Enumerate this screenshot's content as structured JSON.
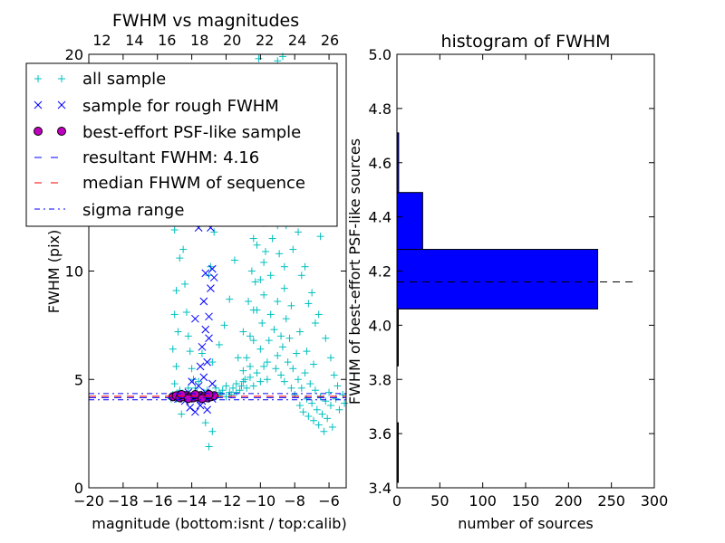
{
  "chart_data": [
    {
      "type": "scatter",
      "title": "FWHM vs magnitudes",
      "xlabel": "magnitude (bottom:isnt / top:calib)",
      "ylabel": "FWHM (pix)",
      "xlim": [
        -20,
        -5
      ],
      "ylim": [
        0,
        20
      ],
      "top_xlim": [
        11.2,
        27.0
      ],
      "x_ticks": [
        -20,
        -18,
        -16,
        -14,
        -12,
        -10,
        -8,
        -6
      ],
      "x_tick_labels": [
        "−20",
        "−18",
        "−16",
        "−14",
        "−12",
        "−10",
        "−8",
        "−6"
      ],
      "top_ticks": [
        12,
        14,
        16,
        18,
        20,
        22,
        24,
        26
      ],
      "top_tick_labels": [
        "12",
        "14",
        "16",
        "18",
        "20",
        "22",
        "24",
        "26"
      ],
      "y_ticks": [
        0,
        5,
        10,
        20
      ],
      "y_tick_labels": [
        "0",
        "5",
        "10",
        "20"
      ],
      "grid": false,
      "legend_position": "top-left",
      "legend": [
        {
          "label": "all sample",
          "marker": "+",
          "color": "#00bfbf"
        },
        {
          "label": "sample for rough FWHM",
          "marker": "x",
          "color": "#0000ff"
        },
        {
          "label": "best-effort PSF-like sample",
          "marker": "o",
          "color": "#bf00bf"
        },
        {
          "label": "resultant FWHM: 4.16",
          "line": "dashed",
          "color": "#0000ff"
        },
        {
          "label": "median FHWM of sequence",
          "line": "dashed",
          "color": "#ff0000"
        },
        {
          "label": "sigma range",
          "line": "dashdot",
          "color": "#0000ff"
        }
      ],
      "resultant_fwhm": 4.16,
      "median_fwhm": 4.22,
      "sigma_range": [
        4.06,
        4.35
      ],
      "series": [
        {
          "name": "all sample",
          "color": "#00bfbf",
          "marker": "+",
          "points": [
            [
              -15.1,
              4.3
            ],
            [
              -15.0,
              4.8
            ],
            [
              -14.9,
              5.6
            ],
            [
              -15.1,
              6.4
            ],
            [
              -14.8,
              7.2
            ],
            [
              -15.0,
              8.0
            ],
            [
              -14.9,
              9.1
            ],
            [
              -14.7,
              10.6
            ],
            [
              -15.0,
              11.9
            ],
            [
              -14.8,
              13.2
            ],
            [
              -14.6,
              12.5
            ],
            [
              -14.5,
              11.0
            ],
            [
              -14.4,
              9.4
            ],
            [
              -14.3,
              8.1
            ],
            [
              -14.2,
              7.0
            ],
            [
              -14.1,
              6.3
            ],
            [
              -14.0,
              5.5
            ],
            [
              -13.9,
              5.0
            ],
            [
              -13.8,
              4.6
            ],
            [
              -13.7,
              4.4
            ],
            [
              -13.5,
              4.3
            ],
            [
              -13.3,
              4.4
            ],
            [
              -13.1,
              4.5
            ],
            [
              -12.9,
              4.3
            ],
            [
              -12.6,
              4.6
            ],
            [
              -12.4,
              4.4
            ],
            [
              -12.2,
              4.5
            ],
            [
              -12.0,
              4.7
            ],
            [
              -11.8,
              4.4
            ],
            [
              -11.6,
              4.6
            ],
            [
              -11.4,
              4.8
            ],
            [
              -11.2,
              4.5
            ],
            [
              -11.0,
              4.9
            ],
            [
              -10.8,
              4.6
            ],
            [
              -10.6,
              5.1
            ],
            [
              -10.4,
              4.7
            ],
            [
              -10.2,
              5.3
            ],
            [
              -10.0,
              4.9
            ],
            [
              -9.8,
              5.6
            ],
            [
              -9.6,
              5.0
            ],
            [
              -13.2,
              3.0
            ],
            [
              -13.0,
              1.9
            ],
            [
              -12.8,
              2.6
            ],
            [
              -14.6,
              3.4
            ],
            [
              -11.0,
              5.4
            ],
            [
              -10.8,
              6.0
            ],
            [
              -10.6,
              7.0
            ],
            [
              -10.4,
              8.2
            ],
            [
              -10.3,
              9.5
            ],
            [
              -10.2,
              11.2
            ],
            [
              -10.1,
              12.8
            ],
            [
              -10.0,
              14.0
            ],
            [
              -10.0,
              6.4
            ],
            [
              -9.9,
              7.6
            ],
            [
              -9.8,
              8.9
            ],
            [
              -9.8,
              10.4
            ],
            [
              -9.7,
              13.2
            ],
            [
              -9.6,
              5.8
            ],
            [
              -9.5,
              6.8
            ],
            [
              -9.4,
              8.0
            ],
            [
              -9.4,
              9.8
            ],
            [
              -9.3,
              11.5
            ],
            [
              -9.2,
              7.3
            ],
            [
              -9.1,
              5.5
            ],
            [
              -9.0,
              6.1
            ],
            [
              -9.0,
              8.6
            ],
            [
              -8.9,
              10.8
            ],
            [
              -8.8,
              7.0
            ],
            [
              -8.8,
              5.2
            ],
            [
              -8.7,
              6.5
            ],
            [
              -8.6,
              9.2
            ],
            [
              -8.6,
              4.9
            ],
            [
              -8.5,
              7.8
            ],
            [
              -8.4,
              5.8
            ],
            [
              -8.3,
              6.9
            ],
            [
              -8.2,
              4.6
            ],
            [
              -8.1,
              5.5
            ],
            [
              -8.0,
              4.3
            ],
            [
              -7.9,
              6.2
            ],
            [
              -7.8,
              5.0
            ],
            [
              -7.7,
              3.8
            ],
            [
              -7.6,
              4.6
            ],
            [
              -7.5,
              3.5
            ],
            [
              -7.4,
              5.3
            ],
            [
              -7.3,
              4.1
            ],
            [
              -7.2,
              3.3
            ],
            [
              -7.1,
              4.8
            ],
            [
              -7.0,
              3.9
            ],
            [
              -6.9,
              3.1
            ],
            [
              -6.8,
              4.5
            ],
            [
              -6.7,
              3.6
            ],
            [
              -6.6,
              2.9
            ],
            [
              -6.5,
              4.2
            ],
            [
              -6.4,
              3.4
            ],
            [
              -6.3,
              2.6
            ],
            [
              -6.2,
              4.0
            ],
            [
              -6.1,
              3.2
            ],
            [
              -6.0,
              4.4
            ],
            [
              -5.9,
              3.8
            ],
            [
              -5.8,
              2.8
            ],
            [
              -5.6,
              4.1
            ],
            [
              -5.4,
              3.6
            ],
            [
              -5.2,
              4.3
            ],
            [
              -5.1,
              3.9
            ],
            [
              -11.2,
              12.4
            ],
            [
              -10.9,
              14.6
            ],
            [
              -10.5,
              16.8
            ],
            [
              -10.3,
              18.2
            ],
            [
              -10.1,
              19.8
            ],
            [
              -9.9,
              18.6
            ],
            [
              -9.6,
              17.2
            ],
            [
              -9.3,
              15.5
            ],
            [
              -8.9,
              13.6
            ],
            [
              -8.5,
              12.1
            ],
            [
              -8.1,
              11.0
            ],
            [
              -7.6,
              9.8
            ],
            [
              -7.2,
              8.5
            ],
            [
              -6.8,
              7.6
            ],
            [
              -6.5,
              11.6
            ],
            [
              -9.0,
              19.7
            ],
            [
              -8.7,
              19.9
            ],
            [
              -10.7,
              13.3
            ],
            [
              -11.5,
              10.5
            ],
            [
              -11.8,
              8.7
            ],
            [
              -12.1,
              7.5
            ],
            [
              -12.4,
              6.6
            ],
            [
              -12.8,
              5.8
            ],
            [
              -13.6,
              4.9
            ],
            [
              -14.2,
              4.6
            ],
            [
              -14.7,
              4.5
            ],
            [
              -13.0,
              9.8
            ],
            [
              -12.7,
              11.8
            ],
            [
              -12.9,
              10.2
            ],
            [
              -13.4,
              6.2
            ],
            [
              -12.3,
              12.6
            ],
            [
              -11.3,
              6.0
            ],
            [
              -11.0,
              7.2
            ],
            [
              -10.7,
              8.6
            ],
            [
              -10.5,
              10.0
            ],
            [
              -10.4,
              11.5
            ],
            [
              -9.8,
              12.2
            ],
            [
              -9.5,
              14.2
            ],
            [
              -9.2,
              16.0
            ],
            [
              -8.8,
              17.5
            ],
            [
              -8.4,
              15.2
            ],
            [
              -8.0,
              13.4
            ],
            [
              -7.8,
              11.8
            ],
            [
              -7.4,
              10.2
            ],
            [
              -7.0,
              9.0
            ],
            [
              -6.6,
              8.0
            ],
            [
              -6.2,
              6.9
            ],
            [
              -5.9,
              6.0
            ],
            [
              -5.7,
              5.2
            ],
            [
              -5.5,
              4.7
            ],
            [
              -6.9,
              5.7
            ],
            [
              -7.3,
              6.3
            ],
            [
              -7.7,
              7.2
            ],
            [
              -8.2,
              8.4
            ],
            [
              -8.6,
              10.2
            ],
            [
              -9.0,
              12.1
            ],
            [
              -9.4,
              13.0
            ],
            [
              -9.7,
              10.9
            ],
            [
              -10.0,
              9.6
            ],
            [
              -10.2,
              8.2
            ],
            [
              -10.4,
              6.8
            ],
            [
              -10.6,
              5.6
            ],
            [
              -10.9,
              5.0
            ],
            [
              -11.1,
              4.7
            ],
            [
              -11.4,
              4.4
            ],
            [
              -11.7,
              4.3
            ],
            [
              -12.0,
              4.2
            ],
            [
              -12.3,
              4.3
            ],
            [
              -12.6,
              4.2
            ],
            [
              -12.9,
              4.3
            ],
            [
              -13.2,
              4.2
            ],
            [
              -13.5,
              4.2
            ],
            [
              -13.8,
              4.3
            ],
            [
              -14.1,
              4.2
            ],
            [
              -14.4,
              4.2
            ],
            [
              -14.7,
              4.3
            ],
            [
              -15.0,
              4.2
            ],
            [
              -15.2,
              4.1
            ],
            [
              -14.9,
              4.1
            ],
            [
              -14.3,
              4.1
            ]
          ]
        },
        {
          "name": "sample for rough FWHM",
          "color": "#0000ff",
          "marker": "x",
          "points": [
            [
              -14.8,
              4.1
            ],
            [
              -14.6,
              4.3
            ],
            [
              -14.4,
              4.0
            ],
            [
              -14.2,
              4.4
            ],
            [
              -14.0,
              4.2
            ],
            [
              -13.8,
              4.1
            ],
            [
              -13.6,
              4.3
            ],
            [
              -13.4,
              4.0
            ],
            [
              -13.2,
              4.4
            ],
            [
              -13.0,
              4.2
            ],
            [
              -12.8,
              4.1
            ],
            [
              -14.1,
              3.7
            ],
            [
              -13.8,
              3.5
            ],
            [
              -13.5,
              3.8
            ],
            [
              -13.1,
              3.6
            ],
            [
              -13.3,
              5.1
            ],
            [
              -13.1,
              5.8
            ],
            [
              -13.4,
              6.5
            ],
            [
              -13.2,
              7.3
            ],
            [
              -13.0,
              7.9
            ],
            [
              -13.3,
              8.6
            ],
            [
              -12.9,
              9.2
            ],
            [
              -13.2,
              9.9
            ],
            [
              -12.8,
              10.1
            ],
            [
              -13.6,
              12.0
            ],
            [
              -12.9,
              12.0
            ],
            [
              -13.8,
              7.8
            ],
            [
              -13.5,
              5.6
            ],
            [
              -14.0,
              4.9
            ],
            [
              -13.0,
              6.9
            ],
            [
              -12.8,
              4.8
            ],
            [
              -13.6,
              4.7
            ],
            [
              -12.7,
              9.7
            ]
          ]
        },
        {
          "name": "best-effort PSF-like sample",
          "color": "#bf00bf",
          "marker": "o",
          "points": [
            [
              -15.1,
              4.2
            ],
            [
              -14.9,
              4.25
            ],
            [
              -14.7,
              4.15
            ],
            [
              -14.5,
              4.2
            ],
            [
              -14.3,
              4.25
            ],
            [
              -14.1,
              4.2
            ],
            [
              -13.9,
              4.15
            ],
            [
              -13.7,
              4.2
            ],
            [
              -13.5,
              4.25
            ],
            [
              -13.3,
              4.2
            ],
            [
              -13.1,
              4.15
            ],
            [
              -12.9,
              4.2
            ],
            [
              -12.7,
              4.25
            ],
            [
              -14.6,
              4.3
            ],
            [
              -13.8,
              4.3
            ],
            [
              -13.0,
              4.3
            ],
            [
              -14.2,
              4.12
            ],
            [
              -13.4,
              4.12
            ]
          ]
        }
      ]
    },
    {
      "type": "bar",
      "orientation": "horizontal",
      "title": "histogram of FWHM",
      "xlabel": "number of sources",
      "ylabel": "FWHM of best-effort PSF-like sources",
      "xlim": [
        0,
        300
      ],
      "ylim": [
        3.4,
        5.0
      ],
      "x_ticks": [
        0,
        50,
        100,
        150,
        200,
        250,
        300
      ],
      "x_tick_labels": [
        "0",
        "50",
        "100",
        "150",
        "200",
        "250",
        "300"
      ],
      "y_ticks": [
        3.4,
        3.6,
        3.8,
        4.0,
        4.2,
        4.4,
        4.6,
        4.8,
        5.0
      ],
      "y_tick_labels": [
        "3.4",
        "3.6",
        "3.8",
        "4.0",
        "4.2",
        "4.4",
        "4.6",
        "4.8",
        "5.0"
      ],
      "bin_edges": [
        3.42,
        3.64,
        3.85,
        4.06,
        4.28,
        4.49,
        4.71
      ],
      "counts": [
        1,
        0,
        1,
        234,
        30,
        2
      ],
      "bar_color": "#0000ff",
      "reference_line": 4.16,
      "reference_line_xrange": [
        0,
        275
      ]
    }
  ]
}
